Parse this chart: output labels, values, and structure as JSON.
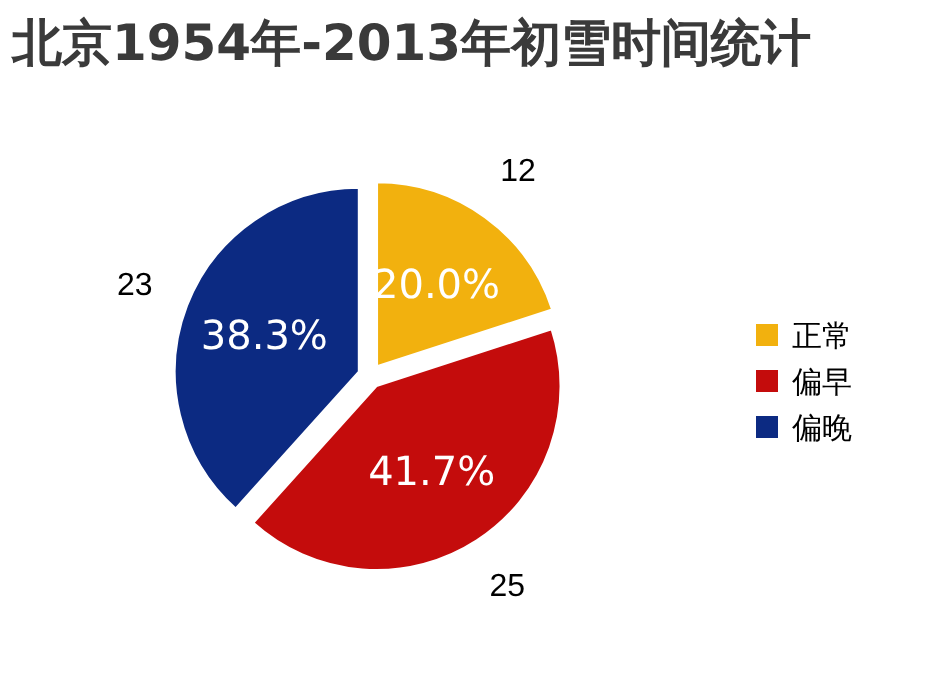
{
  "chart_data": {
    "type": "pie",
    "title": "北京1954年-2013年初雪时间统计",
    "categories": [
      "正常",
      "偏早",
      "偏晚"
    ],
    "values": [
      12,
      25,
      23
    ],
    "colors": [
      "#f2b10e",
      "#c40c0c",
      "#0c2a82"
    ],
    "data_labels": true,
    "annotations": [
      {
        "text": "20.0%",
        "x": "正常"
      },
      {
        "text": "41.7%",
        "x": "偏早"
      },
      {
        "text": "38.3%",
        "x": "偏晚"
      }
    ],
    "legend": "right"
  }
}
